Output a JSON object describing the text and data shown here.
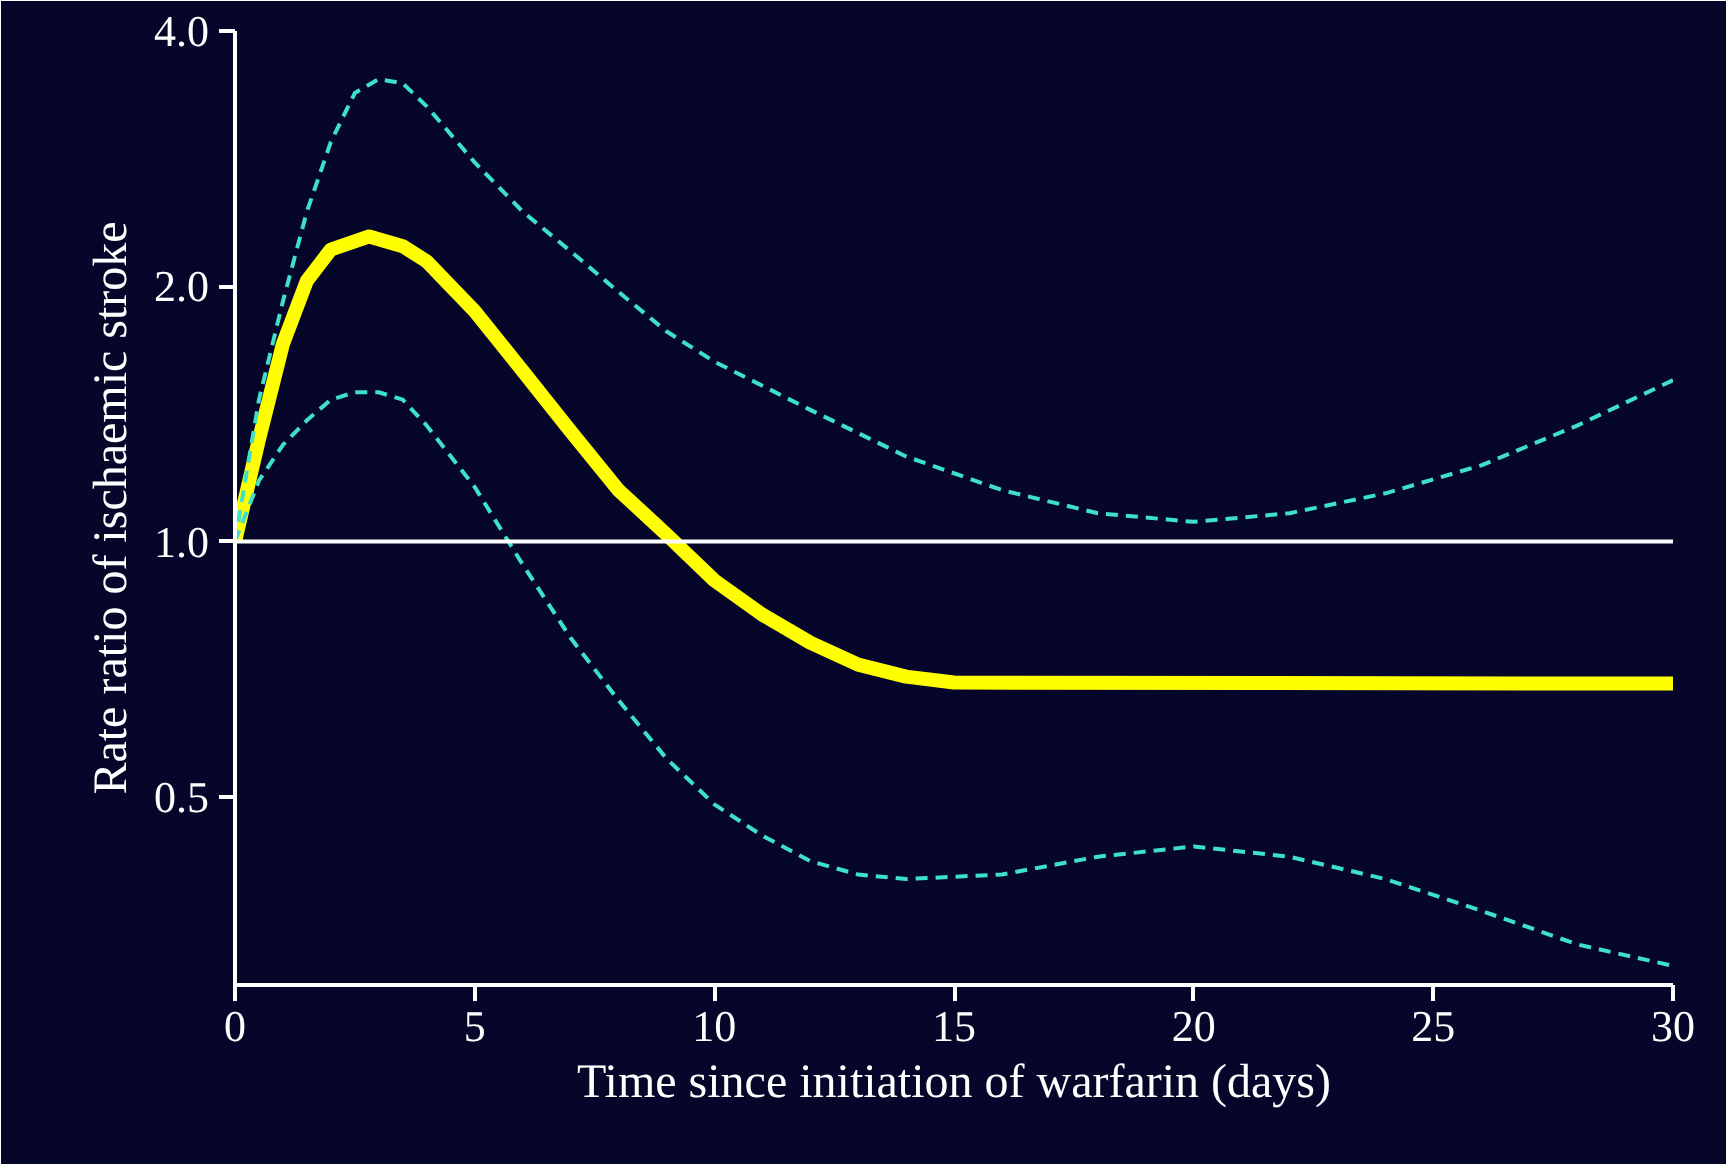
{
  "chart_data": {
    "type": "line",
    "xlabel": "Time since initiation of warfarin (days)",
    "ylabel": "Rate ratio of ischaemic stroke",
    "log": "y",
    "xlim": [
      0,
      30
    ],
    "ylim": [
      0.3,
      4.0
    ],
    "xticks": [
      0,
      5,
      10,
      15,
      20,
      25,
      30
    ],
    "yticks": [
      {
        "value": 0.5,
        "label": "0.5"
      },
      {
        "value": 1,
        "label": "1.0"
      },
      {
        "value": 2,
        "label": "2.0"
      },
      {
        "value": 4,
        "label": "4.0"
      }
    ],
    "grid": false,
    "ref_lines": [
      {
        "axis": "y",
        "value": 1,
        "color": "#ffffff"
      }
    ],
    "series": [
      {
        "color": "#ffff00",
        "line_style": "solid",
        "x": [
          0,
          0.5,
          1,
          1.5,
          2,
          2.8,
          3.5,
          4,
          5,
          6,
          7,
          8,
          9,
          10,
          11,
          12,
          13,
          14,
          15,
          30
        ],
        "values": [
          1.0,
          1.32,
          1.71,
          2.03,
          2.21,
          2.29,
          2.23,
          2.14,
          1.87,
          1.59,
          1.35,
          1.15,
          1.02,
          0.9,
          0.82,
          0.76,
          0.716,
          0.693,
          0.682,
          0.68
        ]
      },
      {
        "color": "#3fe0c8",
        "line_style": "dashed",
        "x": [
          0,
          0.5,
          1,
          1.5,
          2,
          2.5,
          3,
          3.5,
          4,
          5,
          6,
          7,
          8,
          9,
          10,
          12,
          14,
          16,
          18,
          20,
          22,
          24,
          26,
          28,
          30
        ],
        "values": [
          1.0,
          1.47,
          1.92,
          2.45,
          2.96,
          3.38,
          3.51,
          3.47,
          3.26,
          2.8,
          2.45,
          2.2,
          1.97,
          1.77,
          1.63,
          1.43,
          1.26,
          1.15,
          1.08,
          1.055,
          1.08,
          1.14,
          1.23,
          1.37,
          1.55
        ]
      },
      {
        "color": "#3fe0c8",
        "line_style": "dashed",
        "x": [
          0,
          0.5,
          1,
          1.5,
          2,
          2.5,
          3,
          3.5,
          4,
          5,
          6,
          7,
          8,
          9,
          10,
          11,
          12,
          13,
          14,
          16,
          18,
          20,
          22,
          24,
          26,
          28,
          30
        ],
        "values": [
          1.0,
          1.18,
          1.3,
          1.39,
          1.47,
          1.5,
          1.5,
          1.47,
          1.37,
          1.16,
          0.94,
          0.77,
          0.65,
          0.555,
          0.49,
          0.45,
          0.42,
          0.405,
          0.4,
          0.405,
          0.425,
          0.437,
          0.425,
          0.4,
          0.367,
          0.335,
          0.316
        ]
      }
    ]
  }
}
